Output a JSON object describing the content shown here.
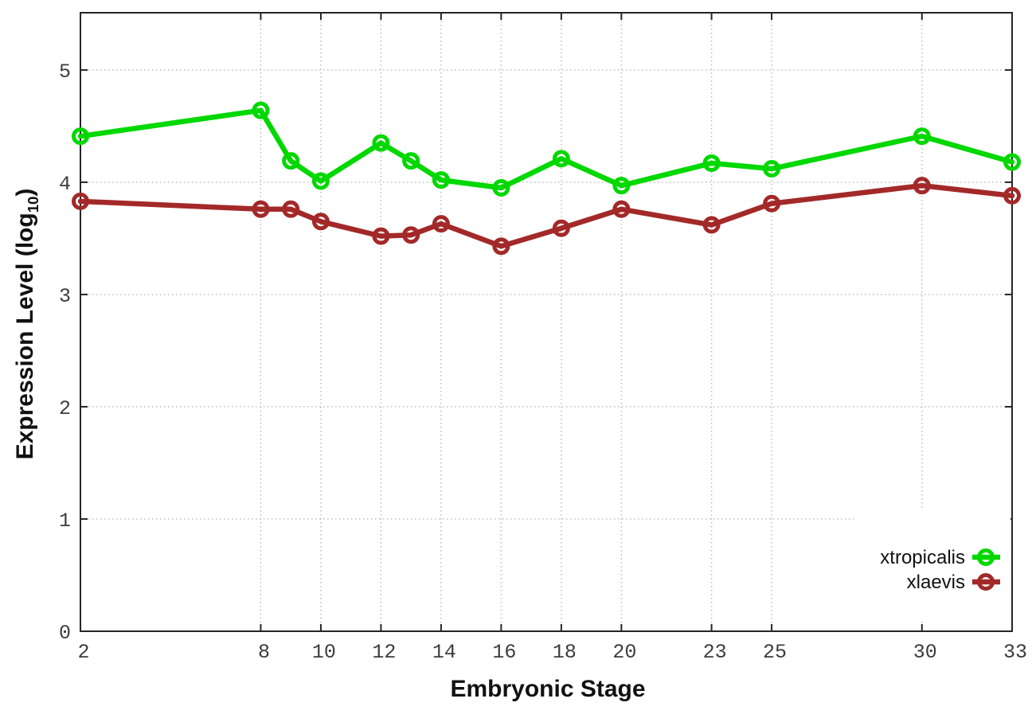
{
  "figure": {
    "background": "#ffffff",
    "border_color": "#262626",
    "grid_color": "#b8b8b8",
    "tick_color": "#262626",
    "tick_label_color": "#3d3d3d",
    "axis_title_color": "#111111",
    "legend_background": "#ffffff"
  },
  "chart_data": {
    "type": "line",
    "title": "",
    "xlabel": "Embryonic Stage",
    "ylabel": "Expression Level (log10)",
    "ylabel_parts": {
      "pre": "Expression Level (log",
      "sub": "10",
      "post": ")"
    },
    "x": [
      2,
      8,
      9,
      10,
      12,
      13,
      14,
      16,
      18,
      20,
      23,
      25,
      30,
      33
    ],
    "xticks": [
      2,
      8,
      10,
      12,
      14,
      16,
      18,
      20,
      23,
      25,
      30,
      33
    ],
    "yticks": [
      0,
      1,
      2,
      3,
      4,
      5
    ],
    "xlim": [
      2,
      33
    ],
    "ylim": [
      0,
      5.51
    ],
    "grid": true,
    "legend_position": "inside bottom-right",
    "marker": "open-circle",
    "series": [
      {
        "name": "xtropicalis",
        "color": "#00d800",
        "values": [
          4.41,
          4.64,
          4.19,
          4.01,
          4.35,
          4.19,
          4.02,
          3.95,
          4.21,
          3.97,
          4.17,
          4.12,
          4.41,
          4.18
        ]
      },
      {
        "name": "xlaevis",
        "color": "#a32929",
        "values": [
          3.83,
          3.76,
          3.76,
          3.65,
          3.52,
          3.53,
          3.63,
          3.43,
          3.59,
          3.76,
          3.62,
          3.81,
          3.97,
          3.88
        ]
      }
    ]
  }
}
